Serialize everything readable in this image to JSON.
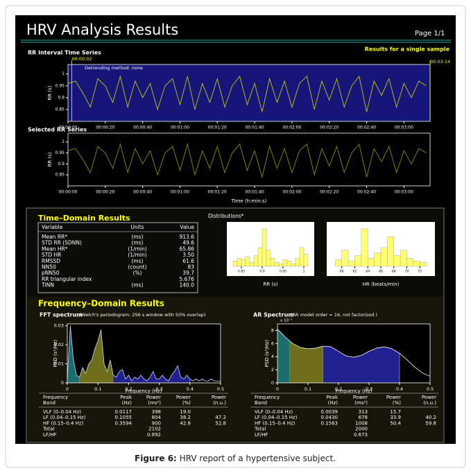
{
  "header": {
    "title": "HRV Analysis Results",
    "page": "Page 1/1",
    "note": "Results for a single sample"
  },
  "chart_data": [
    {
      "type": "line",
      "title": "RR Interval Time Series",
      "ylabel": "RR (s)",
      "annotation": "Detrending method: none",
      "color": "#c8c800",
      "selection": [
        {
          "value": 2,
          "label": "00:00:02"
        },
        {
          "value": 194,
          "label": "00:03:14"
        }
      ],
      "x": [
        0,
        4,
        8,
        12,
        16,
        20,
        24,
        28,
        32,
        36,
        40,
        44,
        48,
        52,
        56,
        60,
        64,
        68,
        72,
        76,
        80,
        84,
        88,
        92,
        96,
        100,
        104,
        108,
        112,
        116,
        120,
        124,
        128,
        132,
        136,
        140,
        144,
        148,
        152,
        156,
        160,
        164,
        168,
        172,
        176,
        180,
        184,
        188,
        192
      ],
      "values": [
        0.96,
        0.97,
        0.92,
        0.86,
        0.98,
        0.95,
        0.88,
        0.99,
        0.86,
        0.97,
        0.9,
        0.96,
        0.85,
        0.95,
        0.98,
        0.87,
        0.99,
        0.85,
        0.96,
        0.88,
        0.98,
        0.86,
        0.95,
        0.99,
        0.87,
        0.96,
        0.84,
        0.98,
        0.88,
        0.97,
        0.86,
        0.96,
        0.99,
        0.85,
        0.97,
        0.89,
        0.98,
        0.86,
        0.95,
        0.99,
        0.84,
        0.97,
        0.91,
        0.98,
        0.86,
        0.96,
        0.9,
        0.97,
        0.95
      ],
      "xlim": [
        0,
        194
      ],
      "ylim": [
        0.8,
        1.04
      ],
      "xticks": [
        {
          "value": 0,
          "label": "00:00:00"
        },
        {
          "value": 20,
          "label": "00:00:20"
        },
        {
          "value": 40,
          "label": "00:00:40"
        },
        {
          "value": 60,
          "label": "00:01:00"
        },
        {
          "value": 80,
          "label": "00:01:20"
        },
        {
          "value": 100,
          "label": "00:01:40"
        },
        {
          "value": 120,
          "label": "00:02:00"
        },
        {
          "value": 140,
          "label": "00:02:20"
        },
        {
          "value": 160,
          "label": "00:02:40"
        },
        {
          "value": 180,
          "label": "00:03:00"
        }
      ],
      "yticks": [
        0.85,
        0.9,
        0.95,
        1
      ]
    },
    {
      "type": "line",
      "title": "Selected RR Series",
      "ylabel": "RR (s)",
      "xlabel": "Time (h:min:s)",
      "color": "#8c8c00",
      "x": [
        0,
        4,
        8,
        12,
        16,
        20,
        24,
        28,
        32,
        36,
        40,
        44,
        48,
        52,
        56,
        60,
        64,
        68,
        72,
        76,
        80,
        84,
        88,
        92,
        96,
        100,
        104,
        108,
        112,
        116,
        120,
        124,
        128,
        132,
        136,
        140,
        144,
        148,
        152,
        156,
        160,
        164,
        168,
        172,
        176,
        180,
        184,
        188,
        192
      ],
      "values": [
        0.96,
        0.97,
        0.92,
        0.86,
        0.98,
        0.95,
        0.88,
        0.99,
        0.86,
        0.97,
        0.9,
        0.96,
        0.85,
        0.95,
        0.98,
        0.87,
        0.99,
        0.85,
        0.96,
        0.88,
        0.98,
        0.86,
        0.95,
        0.99,
        0.87,
        0.96,
        0.84,
        0.98,
        0.88,
        0.97,
        0.86,
        0.96,
        0.99,
        0.85,
        0.97,
        0.89,
        0.98,
        0.86,
        0.95,
        0.99,
        0.84,
        0.97,
        0.91,
        0.98,
        0.86,
        0.96,
        0.9,
        0.97,
        0.95
      ],
      "xlim": [
        0,
        194
      ],
      "ylim": [
        0.8,
        1.04
      ],
      "xticks": [
        {
          "value": 0,
          "label": "00:00:00"
        },
        {
          "value": 20,
          "label": "00:00:20"
        },
        {
          "value": 40,
          "label": "00:00:40"
        },
        {
          "value": 60,
          "label": "00:01:00"
        },
        {
          "value": 80,
          "label": "00:01:20"
        },
        {
          "value": 100,
          "label": "00:01:40"
        },
        {
          "value": 120,
          "label": "00:02:00"
        },
        {
          "value": 140,
          "label": "00:02:20"
        },
        {
          "value": 160,
          "label": "00:02:40"
        },
        {
          "value": 180,
          "label": "00:03:00"
        }
      ],
      "yticks": [
        0.85,
        0.9,
        0.95,
        1
      ]
    },
    {
      "type": "histogram",
      "xlabel": "RR (s)",
      "color": "#ffff70",
      "bins": [
        0.83,
        0.84,
        0.85,
        0.86,
        0.87,
        0.88,
        0.89,
        0.9,
        0.91,
        0.92,
        0.93,
        0.94,
        0.95,
        0.96,
        0.97,
        0.98,
        0.99,
        1.0,
        1.01
      ],
      "values": [
        4,
        6,
        5,
        7,
        3,
        8,
        14,
        28,
        12,
        6,
        3,
        2,
        5,
        4,
        2,
        6,
        14,
        9
      ],
      "xlim": [
        0.82,
        1.02
      ],
      "ylim": [
        0,
        30
      ],
      "xticks": [
        0.85,
        0.9,
        0.95,
        1
      ]
    },
    {
      "type": "histogram",
      "xlabel": "HR (beats/min)",
      "color": "#ffff70",
      "bins": [
        59,
        60,
        61,
        62,
        63,
        64,
        65,
        66,
        67,
        68,
        69,
        70,
        71,
        72,
        73
      ],
      "values": [
        5,
        12,
        4,
        8,
        28,
        6,
        10,
        14,
        22,
        8,
        12,
        6,
        4,
        3
      ],
      "xlim": [
        58,
        74
      ],
      "ylim": [
        0,
        30
      ],
      "xticks": [
        60,
        62,
        64,
        66,
        68,
        70,
        72
      ]
    },
    {
      "type": "area",
      "title": "FFT spectrum",
      "subtitle": "(Welch's periodogram: 256 s window with 50% overlap)",
      "ylabel": "PSD (s²/Hz)",
      "xlabel": "Frequency (Hz)",
      "color": "#c8d8ff",
      "bands": [
        {
          "range": [
            0,
            0.04
          ],
          "color": "#1b6e6e"
        },
        {
          "range": [
            0.04,
            0.15
          ],
          "color": "#6e6e1b"
        },
        {
          "range": [
            0.15,
            0.4
          ],
          "color": "#20208e"
        }
      ],
      "x": [
        0,
        0.01,
        0.02,
        0.03,
        0.04,
        0.05,
        0.06,
        0.07,
        0.08,
        0.09,
        0.1,
        0.11,
        0.12,
        0.13,
        0.14,
        0.15,
        0.16,
        0.17,
        0.18,
        0.19,
        0.2,
        0.21,
        0.22,
        0.23,
        0.24,
        0.25,
        0.26,
        0.27,
        0.28,
        0.29,
        0.3,
        0.31,
        0.32,
        0.33,
        0.34,
        0.35,
        0.36,
        0.37,
        0.38,
        0.39,
        0.4,
        0.41,
        0.42,
        0.43,
        0.44,
        0.45,
        0.46,
        0.47,
        0.48,
        0.49,
        0.5
      ],
      "values": [
        0.002,
        0.03,
        0.012,
        0.004,
        0.003,
        0.008,
        0.005,
        0.01,
        0.012,
        0.018,
        0.022,
        0.028,
        0.01,
        0.006,
        0.012,
        0.004,
        0.003,
        0.006,
        0.007,
        0.002,
        0.004,
        0.001,
        0.003,
        0.002,
        0.004,
        0.002,
        0.001,
        0.003,
        0.006,
        0.002,
        0.002,
        0.004,
        0.002,
        0.001,
        0.004,
        0.006,
        0.009,
        0.003,
        0.002,
        0.004,
        0.002,
        0.001,
        0.002,
        0.001,
        0.002,
        0.001,
        0.001,
        0.002,
        0.001,
        0.001,
        0.001
      ],
      "xlim": [
        0,
        0.5
      ],
      "ylim": [
        0,
        0.031
      ],
      "xticks": [
        0,
        0.1,
        0.2,
        0.3,
        0.4,
        0.5
      ],
      "yticks": [
        0,
        0.01,
        0.02,
        0.03
      ]
    },
    {
      "type": "area",
      "title": "AR Spectrum",
      "subtitle": "(AR model order = 16, not factorized )",
      "ylabel_note": "x 10⁻³",
      "ylabel": "PSD (s²/Hz)",
      "xlabel": "Frequency (Hz)",
      "color": "#ffffff",
      "bands": [
        {
          "range": [
            0,
            0.04
          ],
          "color": "#1b6e6e"
        },
        {
          "range": [
            0.04,
            0.15
          ],
          "color": "#6e6e1b"
        },
        {
          "range": [
            0.15,
            0.4
          ],
          "color": "#20208e"
        }
      ],
      "x": [
        0,
        0.025,
        0.05,
        0.075,
        0.1,
        0.125,
        0.15,
        0.175,
        0.2,
        0.225,
        0.25,
        0.275,
        0.3,
        0.325,
        0.35,
        0.375,
        0.4,
        0.425,
        0.45,
        0.475,
        0.5
      ],
      "values": [
        8.2,
        7.0,
        6.0,
        5.4,
        5.2,
        5.3,
        5.6,
        5.5,
        4.8,
        4.1,
        3.9,
        4.2,
        4.8,
        5.3,
        5.5,
        5.2,
        4.5,
        3.5,
        2.4,
        1.5,
        1.0
      ],
      "xlim": [
        0,
        0.5
      ],
      "ylim": [
        0,
        9
      ],
      "xticks": [
        0,
        0.1,
        0.2,
        0.3,
        0.4,
        0.5
      ],
      "yticks": [
        0,
        2,
        4,
        6,
        8
      ]
    }
  ],
  "time_domain": {
    "title": "Time–Domain Results",
    "columns": [
      "Variable",
      "Units",
      "Value"
    ],
    "rows": [
      {
        "variable": "Mean RR*",
        "units": "(ms)",
        "value": "913.6"
      },
      {
        "variable": "STD RR (SDNN)",
        "units": "(ms)",
        "value": "49.6"
      },
      {
        "variable": "Mean HR*",
        "units": "(1/min)",
        "value": "65.86"
      },
      {
        "variable": "STD HR",
        "units": "(1/min)",
        "value": "3.50"
      },
      {
        "variable": "RMSSD",
        "units": "(ms)",
        "value": "61.6"
      },
      {
        "variable": "NN50",
        "units": "(count)",
        "value": "83"
      },
      {
        "variable": "pNN50",
        "units": "(%)",
        "value": "39.7"
      },
      {
        "variable": "RR triangular index",
        "value": "5.676"
      },
      {
        "variable": "TINN",
        "units": "(ms)",
        "value": "140.0"
      }
    ]
  },
  "distributions": "Distributions*",
  "frequency_domain": {
    "title": "Frequency–Domain Results",
    "tables": [
      {
        "columns": [
          [
            "Frequency",
            "Band"
          ],
          [
            "Peak",
            "(Hz)"
          ],
          [
            "Power",
            "(ms²)"
          ],
          [
            "Power",
            "(%)"
          ],
          [
            "Power",
            "(n.u.)"
          ]
        ],
        "rows": [
          {
            "band": "VLF (0–0.04 Hz)",
            "peak": "0.0117",
            "power": "398",
            "pct": "19.0"
          },
          {
            "band": "LF (0.04–0.15 Hz)",
            "peak": "0.1055",
            "power": "804",
            "pct": "38.2",
            "nu": "47.2"
          },
          {
            "band": "HF (0.15–0.4 Hz)",
            "peak": "0.3594",
            "power": "900",
            "pct": "42.8",
            "nu": "52.8"
          },
          {
            "band": "Total",
            "power": "2102"
          },
          {
            "band": "LF/HF",
            "power": "0.892"
          }
        ]
      },
      {
        "columns": [
          [
            "Frequency",
            "Band"
          ],
          [
            "Peak",
            "(Hz)"
          ],
          [
            "Power",
            "(ms²)"
          ],
          [
            "Power",
            "(%)"
          ],
          [
            "Power",
            "(n.u.)"
          ]
        ],
        "rows": [
          {
            "band": "VLF (0–0.04 Hz)",
            "peak": "0.0039",
            "power": "313",
            "pct": "15.7"
          },
          {
            "band": "LF (0.04–0.15 Hz)",
            "peak": "0.0430",
            "power": "678",
            "pct": "33.9",
            "nu": "40.2"
          },
          {
            "band": "HF (0.15–0.4 Hz)",
            "peak": "0.1563",
            "power": "1008",
            "pct": "50.4",
            "nu": "59.8"
          },
          {
            "band": "Total",
            "power": "2000"
          },
          {
            "band": "LF/HF",
            "power": "0.673"
          }
        ]
      }
    ]
  },
  "caption": {
    "label": "Figure 6:",
    "text": "HRV report of a hypertensive subject."
  }
}
